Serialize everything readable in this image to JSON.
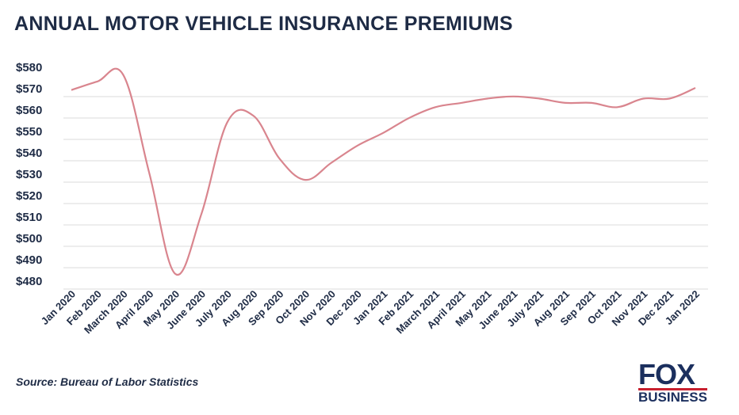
{
  "chart_data": {
    "type": "line",
    "title": "ANNUAL MOTOR VEHICLE INSURANCE PREMIUMS",
    "xlabel": "",
    "ylabel": "",
    "ylim": [
      480,
      580
    ],
    "yticks": [
      "$480",
      "$490",
      "$500",
      "$510",
      "$520",
      "$530",
      "$540",
      "$550",
      "$560",
      "$570",
      "$580"
    ],
    "ytick_values": [
      480,
      490,
      500,
      510,
      520,
      530,
      540,
      550,
      560,
      570,
      580
    ],
    "grid": true,
    "line_color": "#d9858e",
    "categories": [
      "Jan 2020",
      "Feb 2020",
      "March 2020",
      "April 2020",
      "May 2020",
      "June 2020",
      "July 2020",
      "Aug 2020",
      "Sep 2020",
      "Oct 2020",
      "Nov 2020",
      "Dec 2020",
      "Jan 2021",
      "Feb 2021",
      "March 2021",
      "April 2021",
      "May 2021",
      "June 2021",
      "July 2021",
      "Aug 2021",
      "Sep 2021",
      "Oct 2021",
      "Nov 2021",
      "Dec 2021",
      "Jan 2022"
    ],
    "values": [
      569,
      573,
      576,
      530,
      483,
      511,
      554,
      557,
      537,
      527,
      535,
      543,
      549,
      556,
      561,
      563,
      565,
      566,
      565,
      563,
      563,
      561,
      565,
      565,
      570
    ]
  },
  "source": "Source: Bureau of Labor Statistics",
  "logo": {
    "line1": "FOX",
    "line2": "BUSINESS"
  }
}
